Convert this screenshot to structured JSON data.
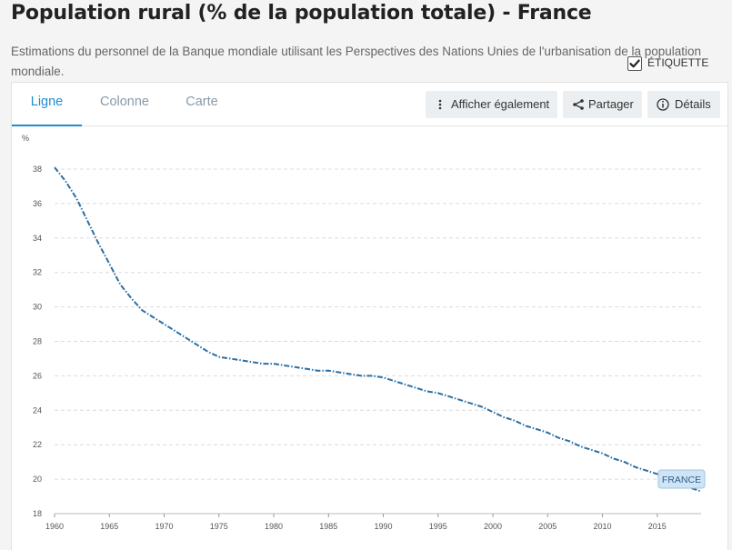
{
  "header": {
    "title": "Population rural (% de la population totale) - France",
    "subtitle": "Estimations du personnel de la Banque mondiale utilisant les Perspectives des Nations Unies de l'urbanisation de la population mondiale."
  },
  "tabs": [
    {
      "label": "Ligne",
      "active": true
    },
    {
      "label": "Colonne",
      "active": false
    },
    {
      "label": "Carte",
      "active": false
    }
  ],
  "toolbar": {
    "show_also_label": "Afficher également",
    "share_label": "Partager",
    "details_label": "Détails"
  },
  "label_toggle": {
    "label": "ÉTIQUETTE",
    "checked": true
  },
  "colors": {
    "accent": "#1f8ecf",
    "series": "#2a6fa5",
    "label_bg": "#cfe4f5"
  },
  "chart_data": {
    "type": "line",
    "ylabel": "%",
    "xlabel": "",
    "ylim": [
      18,
      38
    ],
    "yticks": [
      "18",
      "20",
      "22",
      "24",
      "26",
      "28",
      "30",
      "32",
      "34",
      "36",
      "38"
    ],
    "xlim": [
      1960,
      2019
    ],
    "xticks": [
      "1960",
      "1965",
      "1970",
      "1975",
      "1980",
      "1985",
      "1990",
      "1995",
      "2000",
      "2005",
      "2010",
      "2015"
    ],
    "grid": "horizontal-dashed",
    "series": [
      {
        "name": "FRANCE",
        "line_style": "dash-dot",
        "x": [
          1960,
          1961,
          1962,
          1963,
          1964,
          1965,
          1966,
          1967,
          1968,
          1969,
          1970,
          1971,
          1972,
          1973,
          1974,
          1975,
          1976,
          1977,
          1978,
          1979,
          1980,
          1981,
          1982,
          1983,
          1984,
          1985,
          1986,
          1987,
          1988,
          1989,
          1990,
          1991,
          1992,
          1993,
          1994,
          1995,
          1996,
          1997,
          1998,
          1999,
          2000,
          2001,
          2002,
          2003,
          2004,
          2005,
          2006,
          2007,
          2008,
          2009,
          2010,
          2011,
          2012,
          2013,
          2014,
          2015,
          2016,
          2017,
          2018,
          2019
        ],
        "values": [
          38.1,
          37.3,
          36.3,
          35.0,
          33.7,
          32.5,
          31.3,
          30.5,
          29.8,
          29.4,
          29.0,
          28.6,
          28.2,
          27.8,
          27.4,
          27.1,
          27.0,
          26.9,
          26.8,
          26.7,
          26.7,
          26.6,
          26.5,
          26.4,
          26.3,
          26.3,
          26.2,
          26.1,
          26.0,
          26.0,
          25.9,
          25.7,
          25.5,
          25.3,
          25.1,
          25.0,
          24.8,
          24.6,
          24.4,
          24.2,
          23.9,
          23.6,
          23.4,
          23.1,
          22.9,
          22.7,
          22.4,
          22.2,
          21.9,
          21.7,
          21.5,
          21.2,
          21.0,
          20.7,
          20.5,
          20.3,
          20.0,
          19.8,
          19.5,
          19.3
        ]
      }
    ]
  }
}
